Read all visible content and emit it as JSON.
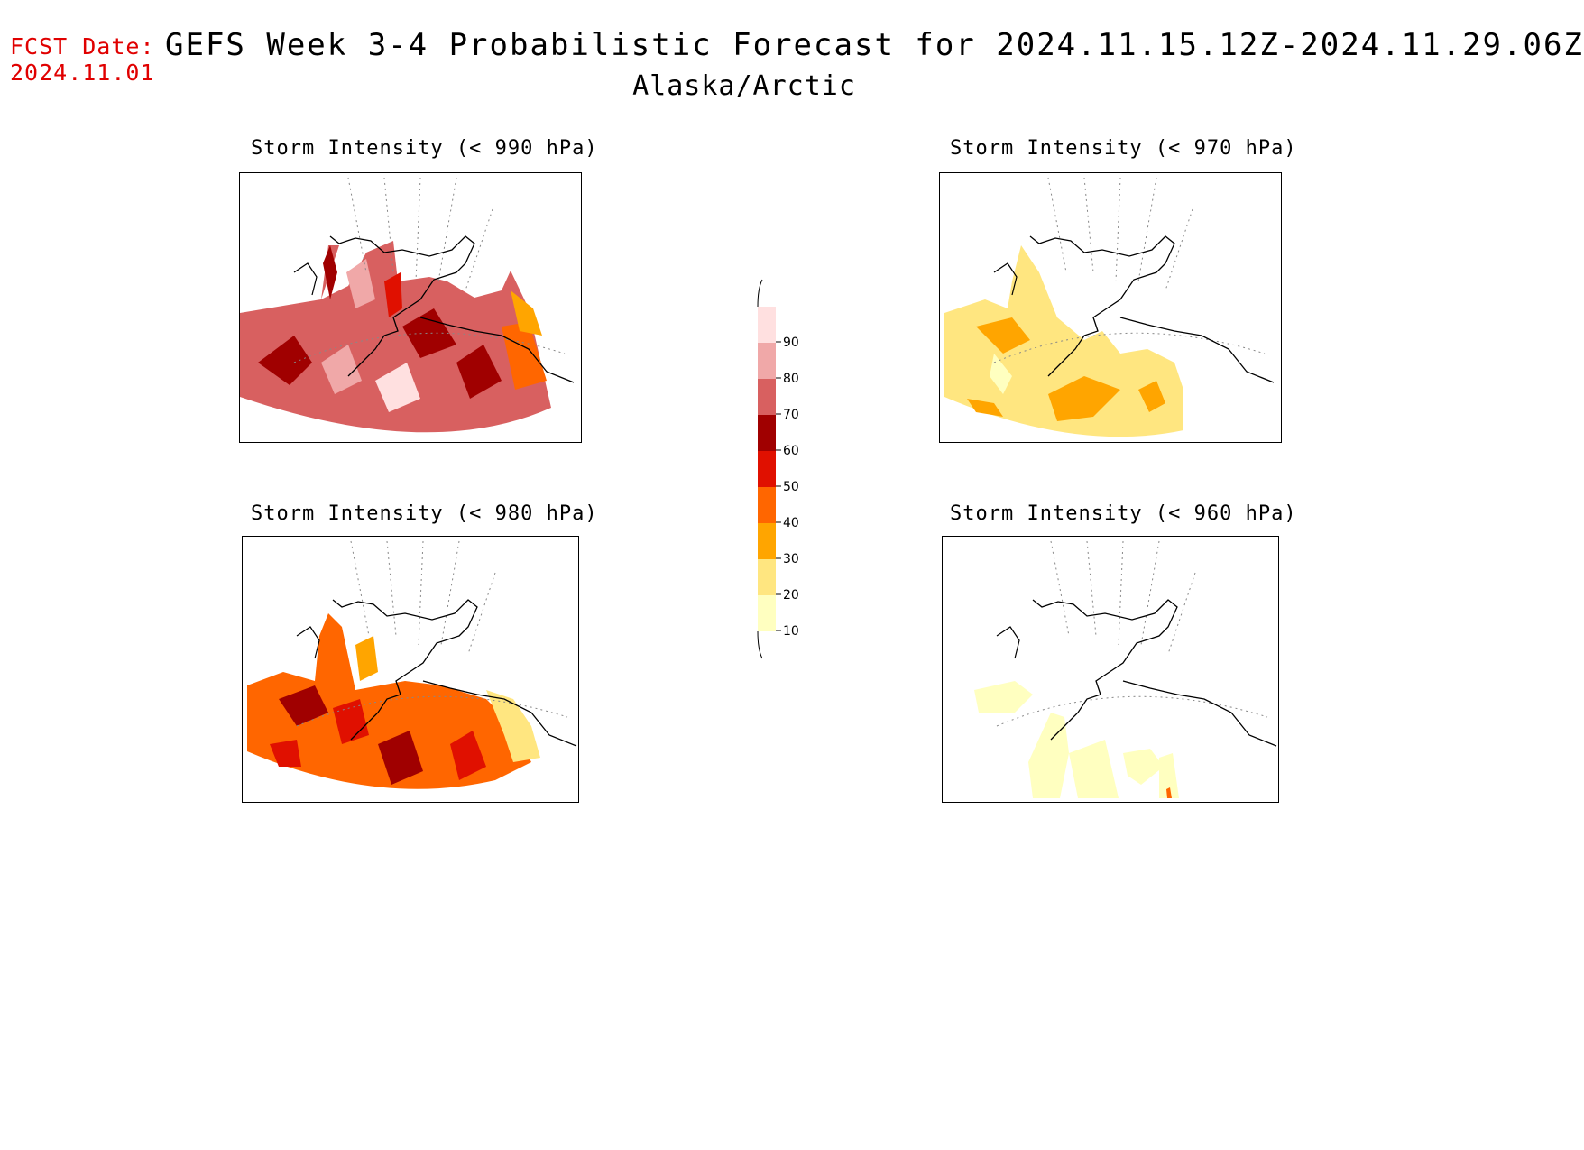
{
  "header": {
    "fcst_label": "FCST Date:",
    "fcst_date": "2024.11.01",
    "title": "GEFS Week 3-4 Probabilistic Forecast for 2024.11.15.12Z-2024.11.29.06Z",
    "subtitle": "Alaska/Arctic"
  },
  "panels": [
    {
      "id": "p990",
      "title": "Storm Intensity (< 990 hPa)",
      "dominant_level": "high (60-90%)"
    },
    {
      "id": "p970",
      "title": "Storm Intensity (< 970 hPa)",
      "dominant_level": "low-moderate (10-40%)"
    },
    {
      "id": "p980",
      "title": "Storm Intensity (< 980 hPa)",
      "dominant_level": "moderate (40-70%)"
    },
    {
      "id": "p960",
      "title": "Storm Intensity (< 960 hPa)",
      "dominant_level": "low (10-20%)"
    }
  ],
  "colorbar": {
    "levels": [
      "10",
      "20",
      "30",
      "40",
      "50",
      "60",
      "70",
      "80",
      "90"
    ],
    "colors": [
      "#ffffc0",
      "#ffe680",
      "#ffa500",
      "#ff6600",
      "#e01000",
      "#a00000",
      "#d86060",
      "#f0a8a8",
      "#ffe0e0"
    ]
  }
}
